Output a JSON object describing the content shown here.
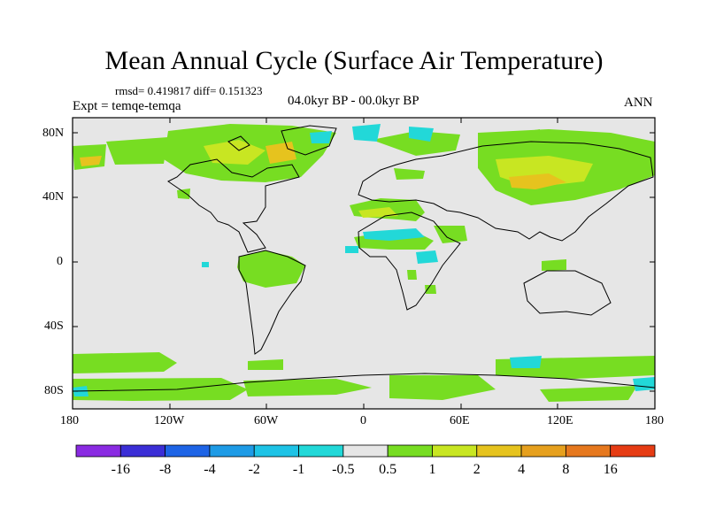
{
  "title": "Mean Annual Cycle (Surface Air Temperature)",
  "stats": "rmsd= 0.419817  diff= 0.151323",
  "experiment": "Expt = temqe-temqa",
  "period": "04.0kyr BP - 00.0kyr BP",
  "season": "ANN",
  "lat_ticks": [
    "80N",
    "40N",
    "0",
    "40S",
    "80S"
  ],
  "lon_ticks": [
    "180",
    "120W",
    "60W",
    "0",
    "60E",
    "120E",
    "180"
  ],
  "colorbar": {
    "labels": [
      "-16",
      "-8",
      "-4",
      "-2",
      "-1",
      "-0.5",
      "0.5",
      "1",
      "2",
      "4",
      "8",
      "16"
    ],
    "colors": [
      "#8a2be2",
      "#3b2ed6",
      "#1e64e6",
      "#1e9be6",
      "#1ec3e6",
      "#22d8d8",
      "#e6e6e6",
      "#77dd22",
      "#c8e622",
      "#e6c31e",
      "#e6a01e",
      "#e6781e",
      "#e63c14"
    ]
  }
}
